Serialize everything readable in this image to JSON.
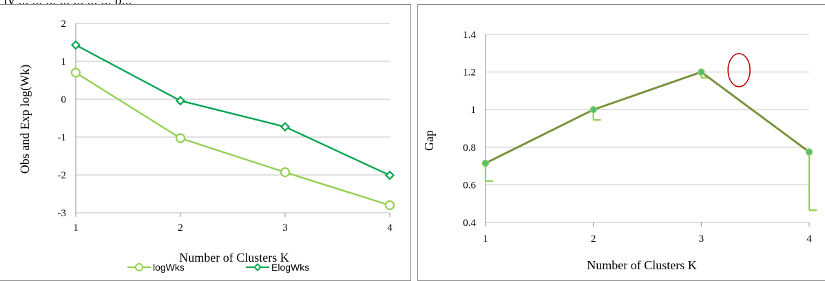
{
  "caption": "ty ... ... ... ... ... ... ... p...",
  "left_panel": {
    "xlabel": "Number of Clusters K",
    "ylabel": "Obs and Exp log(Wk)"
  },
  "right_panel": {
    "xlabel": "Number of Clusters K",
    "ylabel": "Gap"
  },
  "chart_data": [
    {
      "type": "line",
      "title": "",
      "xlabel": "Number of Clusters K",
      "ylabel": "Obs and Exp log(Wk)",
      "x": [
        1,
        2,
        3,
        4
      ],
      "ylim": [
        -3,
        2
      ],
      "yticks": [
        -3,
        -2,
        -1,
        0,
        1,
        2
      ],
      "xticks": [
        1,
        2,
        3,
        4
      ],
      "grid": "horizontal",
      "legend": "bottom",
      "series": [
        {
          "name": "logWks",
          "values": [
            0.7,
            -1.03,
            -1.93,
            -2.8
          ],
          "color": "#92d050",
          "marker": "circle"
        },
        {
          "name": "ElogWks",
          "values": [
            1.43,
            -0.04,
            -0.73,
            -2.01
          ],
          "color": "#00a550",
          "marker": "diamond"
        }
      ]
    },
    {
      "type": "line",
      "title": "",
      "xlabel": "Number of Clusters K",
      "ylabel": "Gap",
      "x": [
        1,
        2,
        3,
        4
      ],
      "ylim": [
        0.4,
        1.4
      ],
      "yticks": [
        0.4,
        0.6,
        0.8,
        1,
        1.2,
        1.4
      ],
      "ytick_labels": [
        "0.4",
        "0.6",
        "0.8",
        "1",
        "1.2",
        "1.4"
      ],
      "xticks": [
        1,
        2,
        3,
        4
      ],
      "grid": "horizontal",
      "legend": "none",
      "series": [
        {
          "values": [
            0.715,
            1.0,
            1.2,
            0.775
          ],
          "error_lower": [
            0.62,
            0.945,
            1.17,
            0.465
          ],
          "color": "#77933c",
          "error_color": "#92d050",
          "marker": "circle"
        }
      ],
      "annotation": {
        "shape": "ellipse",
        "x": 3.35,
        "y": 1.21,
        "color": "#c00000"
      }
    }
  ]
}
